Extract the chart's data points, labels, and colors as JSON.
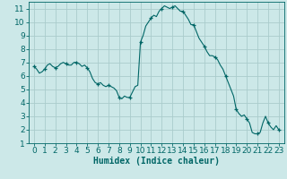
{
  "title": "",
  "xlabel": "Humidex (Indice chaleur)",
  "ylabel": "",
  "bg_color": "#cce8e8",
  "grid_color": "#aacccc",
  "line_color": "#006666",
  "marker_color": "#006666",
  "xlim": [
    -0.5,
    23.5
  ],
  "ylim": [
    1,
    11.5
  ],
  "xticks": [
    0,
    1,
    2,
    3,
    4,
    5,
    6,
    7,
    8,
    9,
    10,
    11,
    12,
    13,
    14,
    15,
    16,
    17,
    18,
    19,
    20,
    21,
    22,
    23
  ],
  "yticks": [
    1,
    2,
    3,
    4,
    5,
    6,
    7,
    8,
    9,
    10,
    11
  ],
  "x": [
    0,
    0.25,
    0.5,
    0.75,
    1.0,
    1.25,
    1.5,
    1.75,
    2.0,
    2.25,
    2.5,
    2.75,
    3.0,
    3.25,
    3.5,
    3.75,
    4.0,
    4.25,
    4.5,
    4.75,
    5.0,
    5.25,
    5.5,
    5.75,
    6.0,
    6.25,
    6.5,
    6.75,
    7.0,
    7.25,
    7.5,
    7.75,
    8.0,
    8.25,
    8.5,
    8.75,
    9.0,
    9.25,
    9.5,
    9.75,
    10.0,
    10.25,
    10.5,
    10.75,
    11.0,
    11.25,
    11.5,
    11.75,
    12.0,
    12.25,
    12.5,
    12.75,
    13.0,
    13.25,
    13.5,
    13.75,
    14.0,
    14.25,
    14.5,
    14.75,
    15.0,
    15.25,
    15.5,
    15.75,
    16.0,
    16.25,
    16.5,
    16.75,
    17.0,
    17.25,
    17.5,
    17.75,
    18.0,
    18.25,
    18.5,
    18.75,
    19.0,
    19.25,
    19.5,
    19.75,
    20.0,
    20.25,
    20.5,
    20.75,
    21.0,
    21.25,
    21.5,
    21.75,
    22.0,
    22.25,
    22.5,
    22.75,
    23.0
  ],
  "y": [
    6.7,
    6.5,
    6.2,
    6.3,
    6.5,
    6.8,
    6.9,
    6.7,
    6.6,
    6.7,
    6.9,
    7.0,
    6.9,
    6.8,
    6.8,
    7.0,
    7.0,
    6.9,
    6.7,
    6.8,
    6.6,
    6.3,
    5.8,
    5.5,
    5.4,
    5.5,
    5.3,
    5.2,
    5.3,
    5.2,
    5.1,
    4.9,
    4.4,
    4.3,
    4.5,
    4.4,
    4.4,
    4.8,
    5.2,
    5.3,
    8.5,
    9.0,
    9.7,
    10.0,
    10.3,
    10.5,
    10.4,
    10.8,
    11.0,
    11.2,
    11.1,
    11.0,
    11.1,
    11.2,
    11.0,
    10.8,
    10.8,
    10.5,
    10.2,
    9.8,
    9.8,
    9.3,
    8.8,
    8.5,
    8.2,
    7.8,
    7.5,
    7.5,
    7.4,
    7.2,
    6.8,
    6.5,
    6.0,
    5.5,
    5.0,
    4.5,
    3.5,
    3.2,
    3.0,
    3.1,
    2.8,
    2.5,
    1.8,
    1.7,
    1.7,
    1.8,
    2.5,
    3.0,
    2.5,
    2.2,
    2.0,
    2.3,
    2.0
  ],
  "marker_x": [
    0,
    1,
    2,
    3,
    4,
    5,
    6,
    7,
    8,
    9,
    10,
    11,
    12,
    13,
    14,
    15,
    16,
    17,
    18,
    19,
    20,
    21,
    22,
    23
  ],
  "marker_y": [
    6.7,
    6.5,
    6.6,
    6.9,
    7.0,
    6.6,
    5.4,
    5.3,
    4.4,
    4.4,
    8.5,
    10.3,
    11.0,
    11.1,
    10.8,
    9.8,
    8.2,
    7.4,
    6.0,
    3.5,
    2.8,
    1.7,
    2.5,
    2.0
  ],
  "xlabel_fontsize": 7,
  "tick_fontsize": 6.5
}
